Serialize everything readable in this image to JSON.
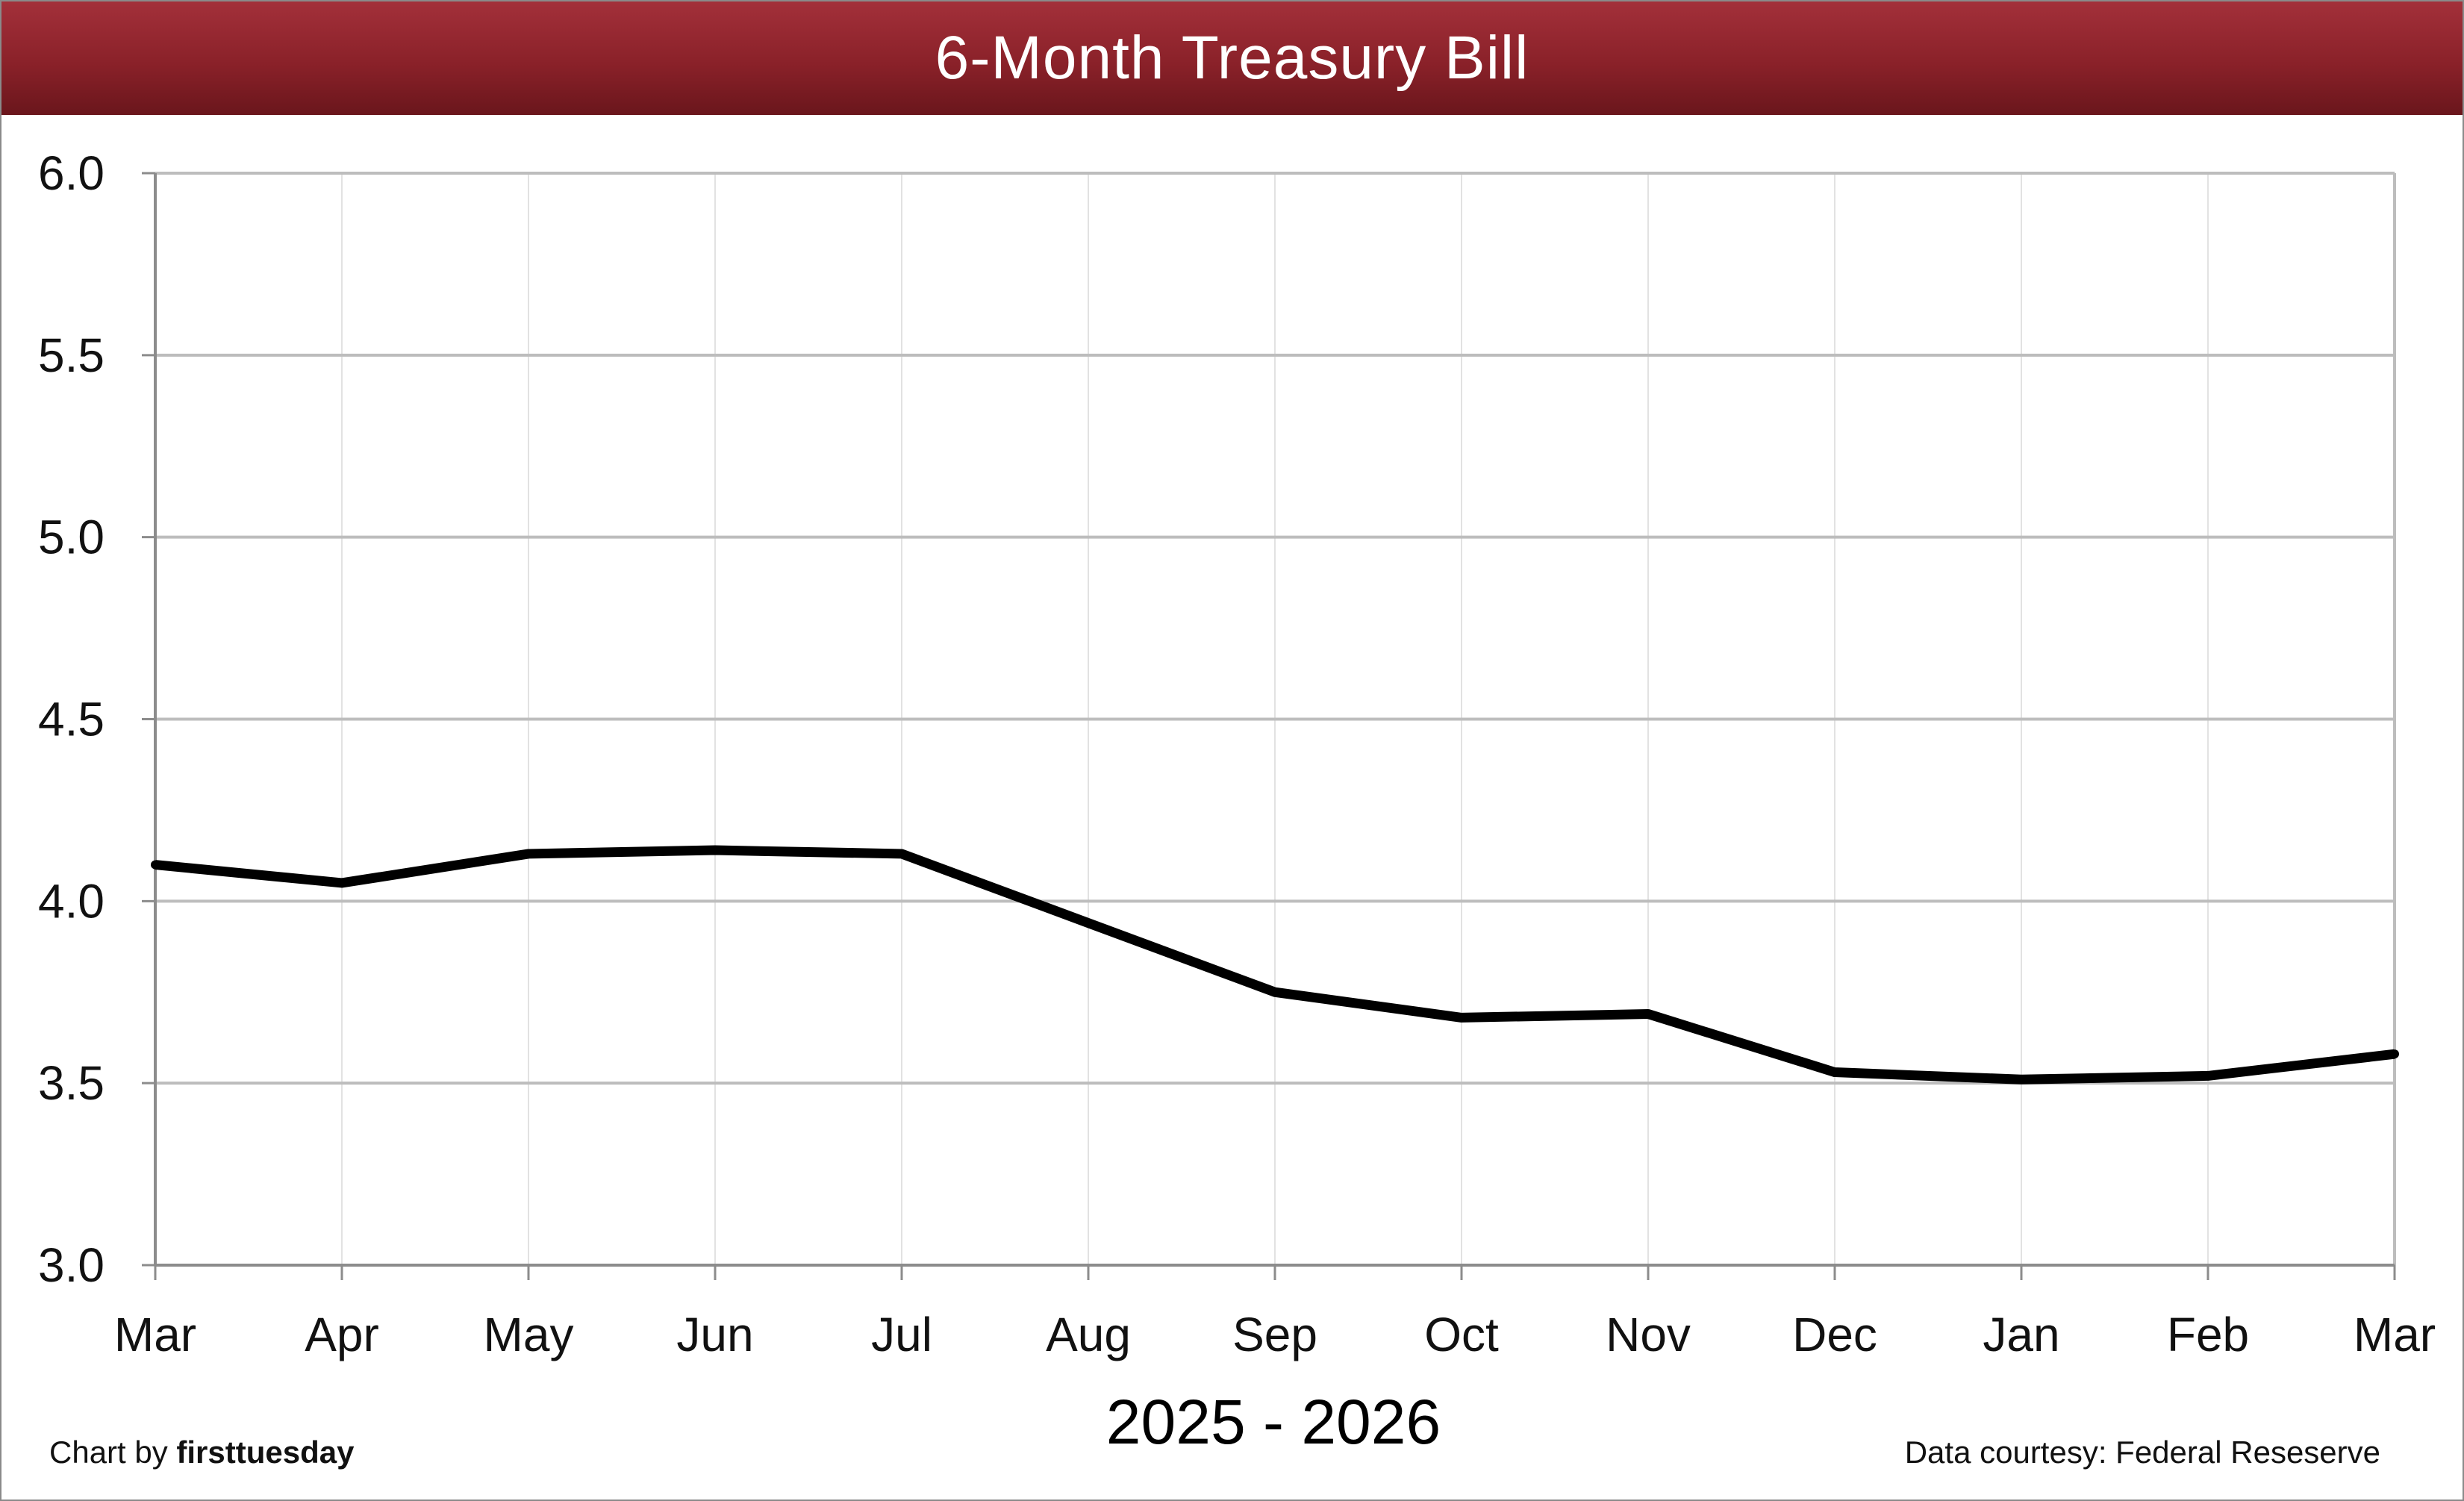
{
  "title": "6-Month Treasury Bill",
  "footer": {
    "credit_prefix": "Chart by ",
    "credit_brand": "firsttuesday",
    "source": "Data courtesy: Federal Reseserve"
  },
  "colors": {
    "title_bar": "#8a2129",
    "line": "#000000",
    "grid_major": "#bdbdbd",
    "grid_minor": "#e2e2e2",
    "axis": "#8c8c8c"
  },
  "chart_data": {
    "type": "line",
    "title": "6-Month Treasury Bill",
    "xlabel": "2025 - 2026",
    "ylabel": "",
    "categories": [
      "Mar",
      "Apr",
      "May",
      "Jun",
      "Jul",
      "Aug",
      "Sep",
      "Oct",
      "Nov",
      "Dec",
      "Jan",
      "Feb",
      "Mar"
    ],
    "values": [
      4.1,
      4.05,
      4.13,
      4.14,
      4.13,
      3.94,
      3.75,
      3.68,
      3.69,
      3.53,
      3.51,
      3.52,
      3.58
    ],
    "ylim": [
      3.0,
      6.0
    ],
    "yticks": [
      "3.0",
      "3.5",
      "4.0",
      "4.5",
      "5.0",
      "5.5",
      "6.0"
    ],
    "grid": true,
    "legend": "none"
  }
}
